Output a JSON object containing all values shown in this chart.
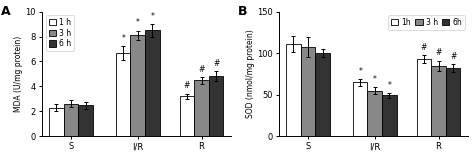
{
  "panel_A": {
    "title": "A",
    "ylabel": "MDA (U/mg protein)",
    "ylim": [
      0,
      10
    ],
    "yticks": [
      0,
      2,
      4,
      6,
      8,
      10
    ],
    "groups": [
      "S",
      "I/R",
      "R"
    ],
    "bar_values": [
      [
        2.3,
        6.7,
        3.2
      ],
      [
        2.6,
        8.1,
        4.5
      ],
      [
        2.5,
        8.5,
        4.85
      ]
    ],
    "bar_errors": [
      [
        0.25,
        0.55,
        0.22
      ],
      [
        0.28,
        0.38,
        0.28
      ],
      [
        0.28,
        0.52,
        0.38
      ]
    ],
    "ann_IR": [
      "*",
      "*",
      "*"
    ],
    "ann_R": [
      "#",
      "#",
      "#"
    ],
    "legend_labels": [
      "1 h",
      "3 h",
      "6 h"
    ],
    "legend_loc": "upper left",
    "legend_ncol": 1
  },
  "panel_B": {
    "title": "B",
    "ylabel": "SOD (nmol/mg protein)",
    "ylim": [
      0,
      150
    ],
    "yticks": [
      0,
      50,
      100,
      150
    ],
    "groups": [
      "S",
      "I/R",
      "R"
    ],
    "bar_values": [
      [
        111,
        65,
        93
      ],
      [
        107,
        55,
        85
      ],
      [
        100,
        49,
        82
      ]
    ],
    "bar_errors": [
      [
        10,
        4,
        5
      ],
      [
        12,
        4,
        6
      ],
      [
        5,
        3,
        5
      ]
    ],
    "ann_IR": [
      "*",
      "*",
      "*"
    ],
    "ann_R": [
      "#",
      "#",
      "#"
    ],
    "legend_labels": [
      "1h",
      "3 h",
      "6h"
    ],
    "legend_loc": "upper right",
    "legend_ncol": 3
  },
  "bar_colors": [
    "white",
    "#888888",
    "#333333"
  ],
  "bar_edgecolor": "black",
  "bar_width": 0.23,
  "group_positions": [
    0.0,
    1.05,
    2.05
  ],
  "xlim": [
    -0.45,
    2.52
  ],
  "figsize": [
    4.74,
    1.57
  ],
  "dpi": 100
}
